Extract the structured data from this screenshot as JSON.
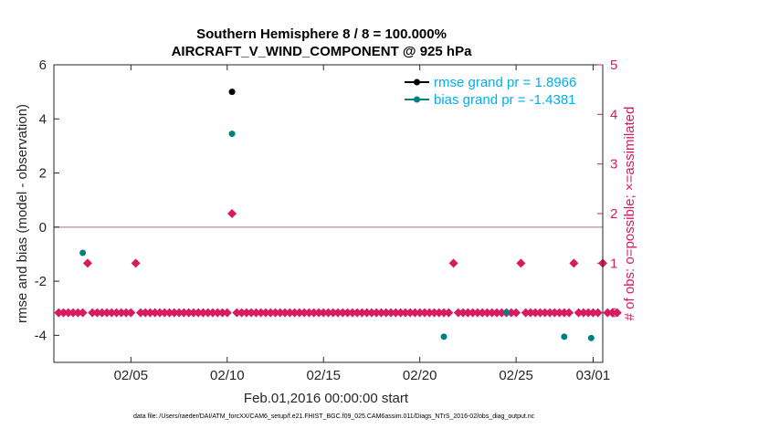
{
  "chart_data": {
    "type": "scatter",
    "title_line1": "Southern Hemisphere 8 / 8 = 100.000%",
    "title_line2": "AIRCRAFT_V_WIND_COMPONENT @ 925 hPa",
    "xlabel": "Feb.01,2016 00:00:00 start",
    "ylabel_left": "rmse and bias (model - observation)",
    "ylabel_right": "# of obs: o=possible; ×=assimilated",
    "xlim": [
      1.0,
      29.5
    ],
    "ylim_left": [
      -5,
      6
    ],
    "ylim_right": [
      -1,
      5
    ],
    "x_ticks": [
      {
        "x": 5,
        "label": "02/05"
      },
      {
        "x": 10,
        "label": "02/10"
      },
      {
        "x": 15,
        "label": "02/15"
      },
      {
        "x": 20,
        "label": "02/20"
      },
      {
        "x": 25,
        "label": "02/25"
      },
      {
        "x": 29,
        "label": "03/01"
      }
    ],
    "y_ticks_left": [
      6,
      4,
      2,
      0,
      -2,
      -4
    ],
    "y_ticks_right": [
      5,
      4,
      3,
      2,
      1,
      0
    ],
    "zero_line": 0,
    "legend_position": "top-right",
    "series": [
      {
        "name": "rmse grand pr = 1.8966",
        "axis": "left",
        "color": "#000000",
        "points": [
          [
            10.25,
            5.0
          ]
        ]
      },
      {
        "name": "bias grand pr = -1.4381",
        "axis": "left",
        "color": "#008080",
        "points": [
          [
            2.5,
            -0.95
          ],
          [
            10.25,
            3.45
          ],
          [
            21.25,
            -4.05
          ],
          [
            24.5,
            -3.15
          ],
          [
            27.5,
            -4.05
          ],
          [
            28.9,
            -4.1
          ]
        ]
      },
      {
        "axis": "right",
        "color": "#d81b60",
        "marker": "diamond",
        "counts_by_6h": [
          0,
          0,
          0,
          0,
          0,
          0,
          1,
          0,
          0,
          0,
          0,
          0,
          0,
          0,
          0,
          0,
          1,
          0,
          0,
          0,
          0,
          0,
          0,
          0,
          0,
          0,
          0,
          0,
          0,
          0,
          0,
          0,
          0,
          0,
          0,
          0,
          2,
          0,
          0,
          0,
          0,
          0,
          0,
          0,
          0,
          0,
          0,
          0,
          0,
          0,
          0,
          0,
          0,
          0,
          0,
          0,
          0,
          0,
          0,
          0,
          0,
          0,
          0,
          0,
          0,
          0,
          0,
          0,
          0,
          0,
          0,
          0,
          0,
          0,
          0,
          0,
          0,
          0,
          0,
          0,
          0,
          0,
          1,
          0,
          0,
          0,
          0,
          0,
          0,
          0,
          0,
          0,
          0,
          0,
          0,
          0,
          1,
          0,
          0,
          0,
          0,
          0,
          0,
          0,
          0,
          0,
          0,
          1,
          0,
          0,
          0,
          0,
          0,
          1,
          0,
          0,
          0
        ],
        "count_start_x": 1.25,
        "count_step_x": 0.25
      }
    ]
  },
  "footer": "data file: /Users/raeder/DAI/ATM_forcXX/CAM6_setup/f.e21.FHIST_BGC.f09_025.CAM6assim.011/Diags_NTrS_2016-02/obs_diag_output.nc"
}
